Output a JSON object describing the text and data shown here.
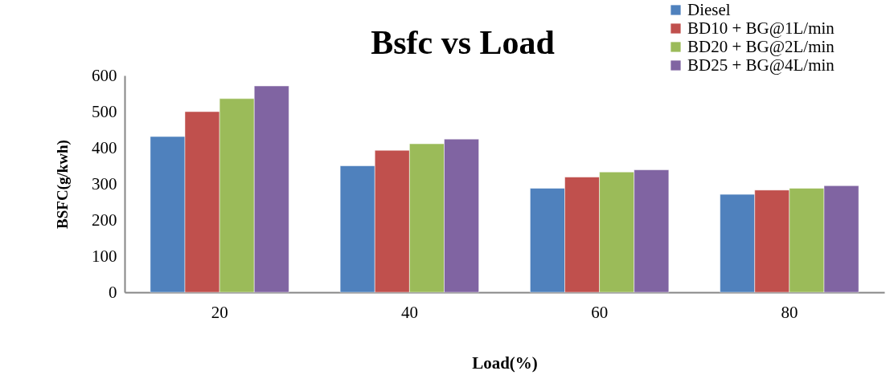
{
  "chart_data": {
    "type": "bar",
    "title": "Bsfc vs Load",
    "xlabel": "Load(%)",
    "ylabel": "BSFC(g/kwh)",
    "categories": [
      "20",
      "40",
      "60",
      "80"
    ],
    "series": [
      {
        "name": "Diesel",
        "color": "#4f81bd",
        "values": [
          431,
          350,
          288,
          271
        ]
      },
      {
        "name": "BD10 + BG@1L/min",
        "color": "#c0504d",
        "values": [
          500,
          393,
          319,
          283
        ]
      },
      {
        "name": "BD20 + BG@2L/min",
        "color": "#9bbb59",
        "values": [
          536,
          411,
          333,
          288
        ]
      },
      {
        "name": "BD25 + BG@4L/min",
        "color": "#8064a2",
        "values": [
          571,
          424,
          339,
          295
        ]
      }
    ],
    "ylim": [
      0,
      600
    ],
    "yticks": [
      0,
      100,
      200,
      300,
      400,
      500,
      600
    ],
    "grid": false,
    "legend": "top right"
  }
}
